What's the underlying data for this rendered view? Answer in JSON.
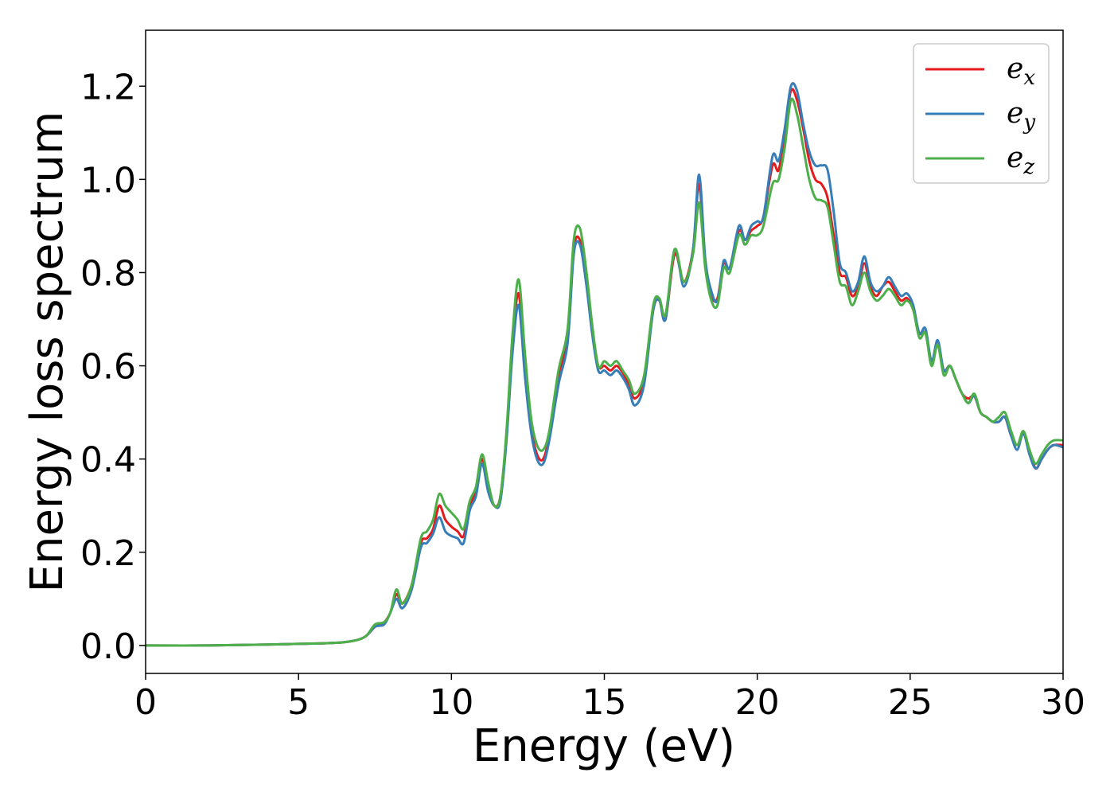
{
  "chart_data": {
    "type": "line",
    "title": "",
    "xlabel": "Energy (eV)",
    "ylabel": "Energy loss spectrum",
    "xlim": [
      0,
      30
    ],
    "ylim": [
      -0.06,
      1.32
    ],
    "xticks": [
      0,
      5,
      10,
      15,
      20,
      25,
      30
    ],
    "xtick_labels": [
      "0",
      "5",
      "10",
      "15",
      "20",
      "25",
      "30"
    ],
    "yticks": [
      0.0,
      0.2,
      0.4,
      0.6,
      0.8,
      1.0,
      1.2
    ],
    "ytick_labels": [
      "0.0",
      "0.2",
      "0.4",
      "0.6",
      "0.8",
      "1.0",
      "1.2"
    ],
    "grid": false,
    "legend_position": "top-right",
    "x": [
      0,
      2,
      4,
      6,
      6.8,
      7.2,
      7.5,
      7.8,
      8.0,
      8.2,
      8.4,
      8.7,
      9.0,
      9.2,
      9.4,
      9.6,
      9.8,
      10.0,
      10.2,
      10.4,
      10.6,
      10.8,
      11.0,
      11.2,
      11.4,
      11.6,
      11.8,
      12.0,
      12.2,
      12.4,
      12.6,
      12.8,
      13.0,
      13.2,
      13.5,
      13.8,
      14.0,
      14.2,
      14.4,
      14.6,
      14.8,
      15.0,
      15.2,
      15.4,
      15.6,
      15.8,
      16.0,
      16.3,
      16.6,
      16.8,
      17.0,
      17.3,
      17.6,
      17.9,
      18.1,
      18.3,
      18.5,
      18.7,
      18.9,
      19.1,
      19.4,
      19.6,
      19.8,
      20.0,
      20.2,
      20.5,
      20.7,
      20.9,
      21.1,
      21.3,
      21.5,
      21.7,
      21.9,
      22.1,
      22.3,
      22.5,
      22.7,
      22.9,
      23.1,
      23.3,
      23.5,
      23.7,
      23.9,
      24.1,
      24.3,
      24.5,
      24.7,
      24.9,
      25.1,
      25.3,
      25.5,
      25.7,
      25.9,
      26.1,
      26.3,
      26.5,
      26.7,
      26.9,
      27.1,
      27.3,
      27.5,
      27.7,
      27.9,
      28.1,
      28.3,
      28.5,
      28.7,
      28.9,
      29.1,
      29.3,
      29.5,
      29.7,
      30.0
    ],
    "series": [
      {
        "name": "e_x",
        "color": "#e41a1c",
        "values": [
          0.0,
          0.0,
          0.002,
          0.005,
          0.01,
          0.02,
          0.04,
          0.05,
          0.07,
          0.11,
          0.09,
          0.13,
          0.22,
          0.23,
          0.25,
          0.3,
          0.27,
          0.255,
          0.245,
          0.235,
          0.3,
          0.33,
          0.4,
          0.34,
          0.3,
          0.32,
          0.45,
          0.65,
          0.755,
          0.6,
          0.47,
          0.41,
          0.4,
          0.45,
          0.58,
          0.66,
          0.85,
          0.87,
          0.79,
          0.68,
          0.6,
          0.6,
          0.59,
          0.6,
          0.585,
          0.56,
          0.53,
          0.57,
          0.72,
          0.74,
          0.7,
          0.84,
          0.78,
          0.85,
          0.99,
          0.82,
          0.75,
          0.745,
          0.82,
          0.81,
          0.89,
          0.87,
          0.89,
          0.9,
          0.92,
          1.03,
          1.02,
          1.1,
          1.19,
          1.17,
          1.11,
          1.04,
          1.0,
          0.99,
          0.96,
          0.88,
          0.8,
          0.79,
          0.75,
          0.77,
          0.82,
          0.77,
          0.75,
          0.77,
          0.78,
          0.76,
          0.74,
          0.745,
          0.72,
          0.67,
          0.67,
          0.61,
          0.645,
          0.59,
          0.6,
          0.57,
          0.54,
          0.53,
          0.535,
          0.5,
          0.49,
          0.48,
          0.48,
          0.49,
          0.45,
          0.43,
          0.455,
          0.42,
          0.38,
          0.4,
          0.42,
          0.43,
          0.43
        ]
      },
      {
        "name": "e_y",
        "color": "#377eb8",
        "values": [
          0.0,
          0.0,
          0.002,
          0.005,
          0.01,
          0.02,
          0.04,
          0.045,
          0.07,
          0.1,
          0.08,
          0.12,
          0.21,
          0.22,
          0.24,
          0.275,
          0.245,
          0.235,
          0.23,
          0.22,
          0.29,
          0.32,
          0.39,
          0.33,
          0.3,
          0.31,
          0.44,
          0.63,
          0.73,
          0.58,
          0.46,
          0.4,
          0.39,
          0.44,
          0.56,
          0.65,
          0.84,
          0.86,
          0.78,
          0.67,
          0.59,
          0.59,
          0.58,
          0.59,
          0.575,
          0.55,
          0.515,
          0.56,
          0.72,
          0.74,
          0.7,
          0.85,
          0.77,
          0.85,
          1.01,
          0.83,
          0.76,
          0.74,
          0.825,
          0.81,
          0.9,
          0.87,
          0.9,
          0.91,
          0.92,
          1.05,
          1.04,
          1.11,
          1.2,
          1.19,
          1.12,
          1.06,
          1.03,
          1.03,
          1.02,
          0.93,
          0.82,
          0.8,
          0.76,
          0.78,
          0.835,
          0.78,
          0.76,
          0.77,
          0.79,
          0.77,
          0.75,
          0.755,
          0.73,
          0.67,
          0.68,
          0.61,
          0.655,
          0.59,
          0.6,
          0.57,
          0.54,
          0.52,
          0.535,
          0.5,
          0.49,
          0.48,
          0.48,
          0.49,
          0.45,
          0.42,
          0.455,
          0.41,
          0.38,
          0.4,
          0.42,
          0.43,
          0.425
        ]
      },
      {
        "name": "e_z",
        "color": "#4daf4a",
        "values": [
          0.0,
          0.0,
          0.002,
          0.005,
          0.01,
          0.02,
          0.045,
          0.05,
          0.07,
          0.12,
          0.09,
          0.13,
          0.23,
          0.245,
          0.27,
          0.325,
          0.3,
          0.285,
          0.27,
          0.25,
          0.31,
          0.34,
          0.41,
          0.35,
          0.3,
          0.32,
          0.46,
          0.67,
          0.785,
          0.63,
          0.49,
          0.43,
          0.42,
          0.46,
          0.59,
          0.68,
          0.87,
          0.895,
          0.81,
          0.69,
          0.6,
          0.61,
          0.6,
          0.61,
          0.59,
          0.57,
          0.54,
          0.58,
          0.73,
          0.745,
          0.71,
          0.85,
          0.78,
          0.84,
          0.95,
          0.81,
          0.74,
          0.73,
          0.81,
          0.8,
          0.88,
          0.86,
          0.88,
          0.88,
          0.9,
          0.99,
          1.0,
          1.07,
          1.17,
          1.14,
          1.07,
          1.0,
          0.96,
          0.955,
          0.94,
          0.86,
          0.78,
          0.77,
          0.73,
          0.76,
          0.8,
          0.76,
          0.74,
          0.75,
          0.765,
          0.75,
          0.73,
          0.74,
          0.72,
          0.66,
          0.67,
          0.6,
          0.645,
          0.58,
          0.6,
          0.57,
          0.54,
          0.52,
          0.54,
          0.5,
          0.49,
          0.48,
          0.49,
          0.5,
          0.46,
          0.43,
          0.46,
          0.42,
          0.39,
          0.41,
          0.43,
          0.44,
          0.44
        ]
      }
    ]
  },
  "legend": {
    "items": [
      {
        "base": "e",
        "sub": "x"
      },
      {
        "base": "e",
        "sub": "y"
      },
      {
        "base": "e",
        "sub": "z"
      }
    ]
  }
}
